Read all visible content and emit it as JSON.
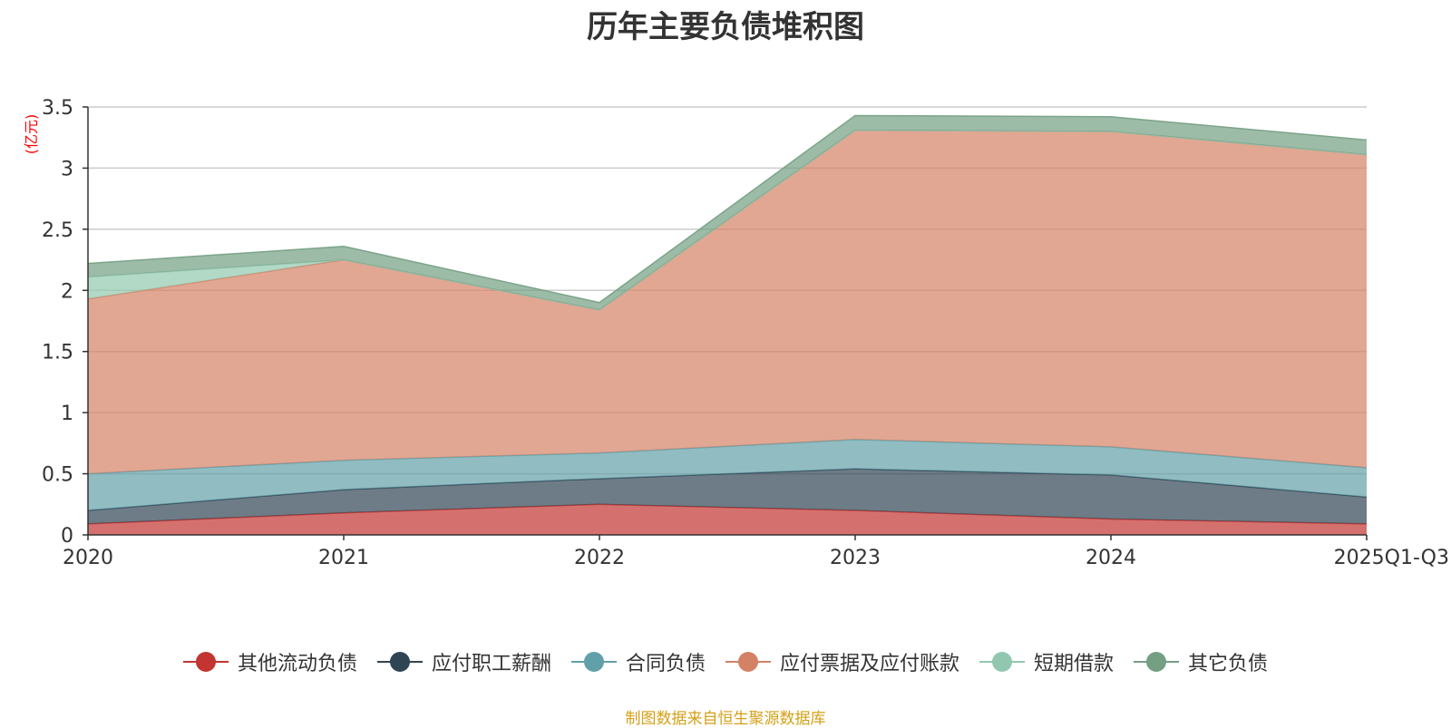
{
  "chart_data": {
    "type": "area",
    "stacked": true,
    "title": "历年主要负债堆积图",
    "ylabel": "(亿元)",
    "xlabel": "",
    "categories": [
      "2020",
      "2021",
      "2022",
      "2023",
      "2024",
      "2025Q1-Q3"
    ],
    "ylim": [
      0,
      3.5
    ],
    "yticks": [
      "0",
      "0.5",
      "1",
      "1.5",
      "2",
      "2.5",
      "3",
      "3.5"
    ],
    "grid": true,
    "legend_position": "bottom",
    "series": [
      {
        "name": "其他流动负债",
        "color": "#c23531",
        "values": [
          0.09,
          0.18,
          0.25,
          0.2,
          0.13,
          0.09
        ]
      },
      {
        "name": "应付职工薪酬",
        "color": "#2f4554",
        "values": [
          0.11,
          0.19,
          0.21,
          0.34,
          0.36,
          0.22
        ]
      },
      {
        "name": "合同负债",
        "color": "#61a0a8",
        "values": [
          0.3,
          0.24,
          0.21,
          0.24,
          0.23,
          0.24
        ]
      },
      {
        "name": "应付票据及应付账款",
        "color": "#d48265",
        "values": [
          1.43,
          1.64,
          1.17,
          2.53,
          2.58,
          2.56
        ]
      },
      {
        "name": "短期借款",
        "color": "#91c7ae",
        "values": [
          0.18,
          0.0,
          0.0,
          0.0,
          0.0,
          0.0
        ]
      },
      {
        "name": "其它负债",
        "color": "#749f83",
        "values": [
          0.11,
          0.11,
          0.06,
          0.12,
          0.12,
          0.12
        ]
      }
    ]
  },
  "source_note": "制图数据来自恒生聚源数据库"
}
